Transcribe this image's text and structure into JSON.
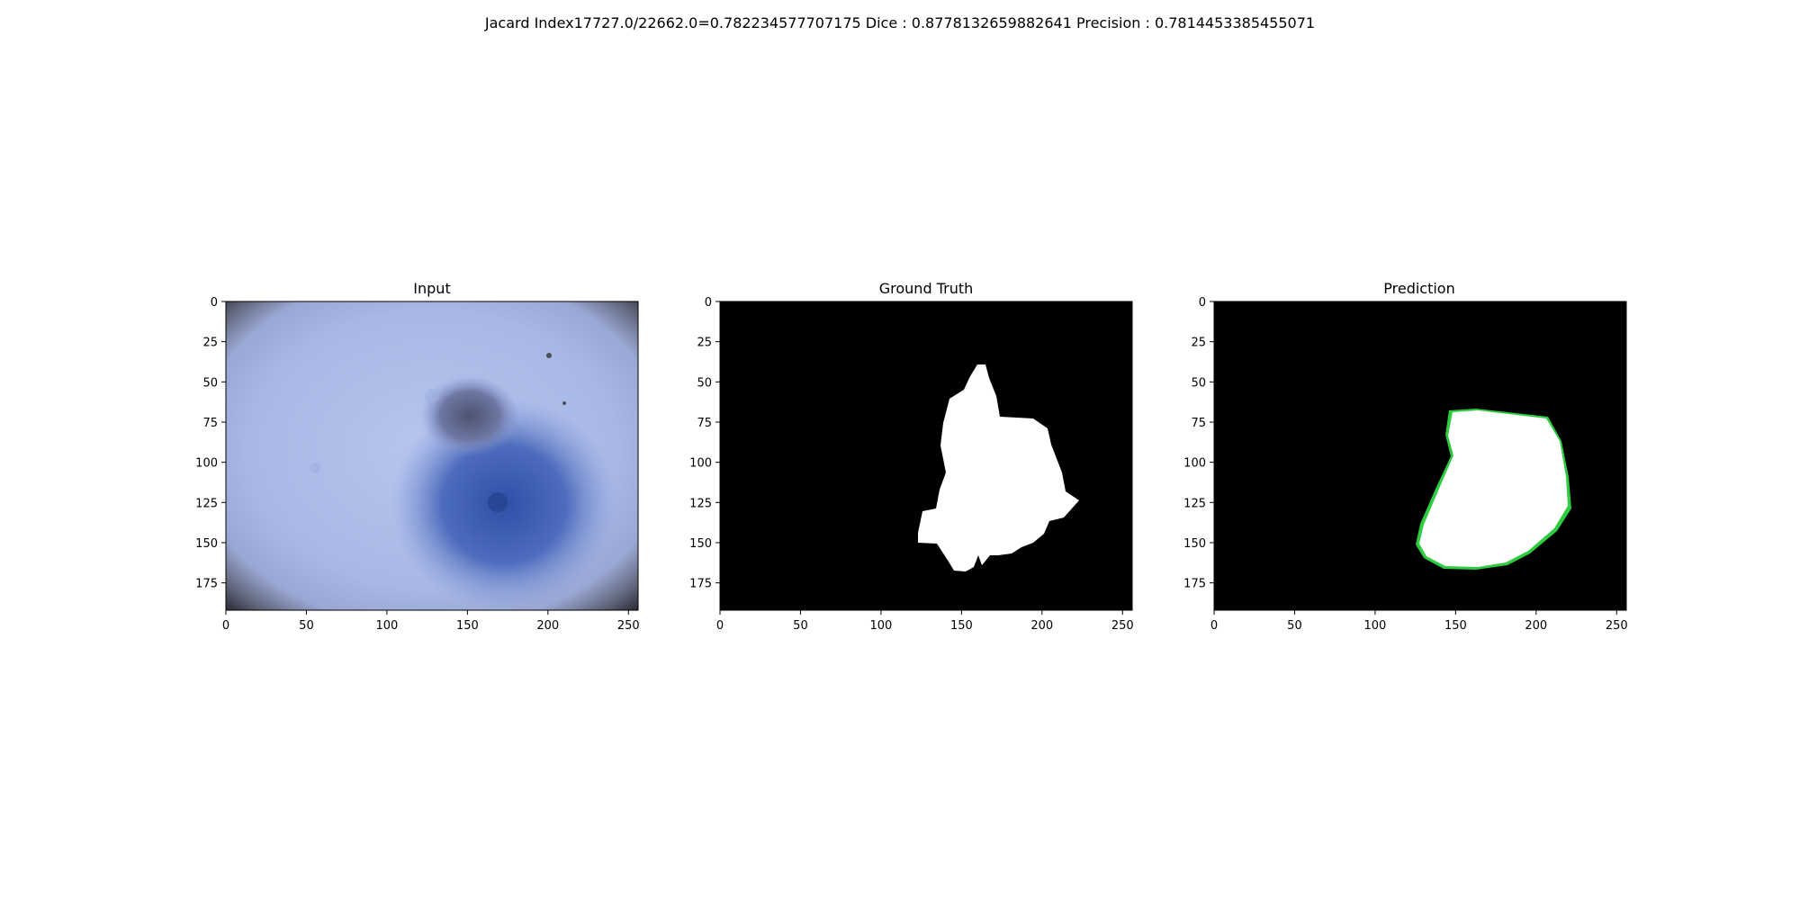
{
  "figure": {
    "suptitle": "Jacard Index17727.0/22662.0=0.782234577707175 Dice : 0.8778132659882641 Precision : 0.7814453385455071"
  },
  "panels": [
    {
      "title": "Input"
    },
    {
      "title": "Ground Truth"
    },
    {
      "title": "Prediction"
    }
  ],
  "axes": {
    "x_ticks": [
      "0",
      "50",
      "100",
      "150",
      "200",
      "250"
    ],
    "y_ticks": [
      "0",
      "25",
      "50",
      "75",
      "100",
      "125",
      "150",
      "175"
    ],
    "x_range": [
      0,
      256
    ],
    "y_range": [
      0,
      192
    ]
  },
  "colors": {
    "mask_background": "#000000",
    "mask_foreground": "#ffffff",
    "input_base": "#a9b8e6",
    "input_lesion": "#3f5fb2",
    "input_vignette": "#2a2a35"
  }
}
